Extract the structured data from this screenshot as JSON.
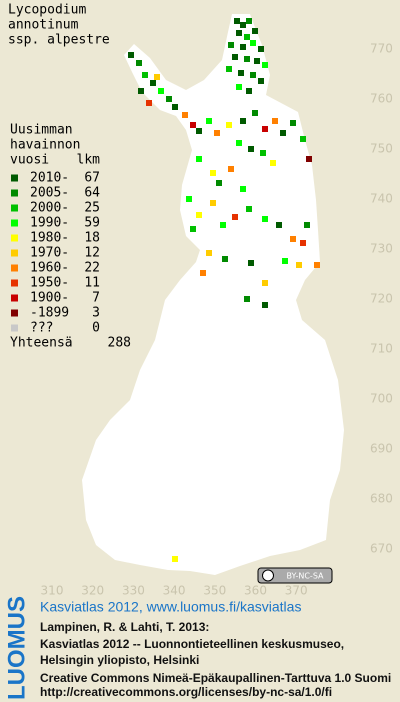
{
  "header": {
    "title_lines": [
      "Lycopodium",
      "annotinum",
      "ssp. alpestre"
    ]
  },
  "legend": {
    "heading_lines": [
      "Uusimman",
      "havainnon",
      "vuosi"
    ],
    "count_heading": "lkm",
    "rows": [
      {
        "label": "2010-",
        "count": 67,
        "color": "#005a00"
      },
      {
        "label": "2005-",
        "count": 64,
        "color": "#008a00"
      },
      {
        "label": "2000-",
        "count": 25,
        "color": "#00c000"
      },
      {
        "label": "1990-",
        "count": 59,
        "color": "#00ff00"
      },
      {
        "label": "1980-",
        "count": 18,
        "color": "#ffff00"
      },
      {
        "label": "1970-",
        "count": 12,
        "color": "#ffcc00"
      },
      {
        "label": "1960-",
        "count": 22,
        "color": "#ff8000"
      },
      {
        "label": "1950-",
        "count": 11,
        "color": "#e63200"
      },
      {
        "label": "1900-",
        "count": 7,
        "color": "#c80000"
      },
      {
        "label": "-1899",
        "count": 3,
        "color": "#800000"
      },
      {
        "label": "???",
        "count": 0,
        "color": "#c8c8c8"
      }
    ],
    "total_label": "Yhteensä",
    "total": 288
  },
  "map": {
    "xticks": [
      310,
      320,
      330,
      340,
      350,
      360,
      370
    ],
    "yticks": [
      770,
      760,
      750,
      740,
      730,
      720,
      710,
      700,
      690,
      680,
      670
    ],
    "license_badge": "BY-NC-SA"
  },
  "footer": {
    "logo": "LUOMUS",
    "link": "Kasviatlas 2012, www.luomus.fi/kasviatlas",
    "citation_lines": [
      "Lampinen, R. & Lahti, T. 2013:",
      "Kasviatlas 2012 -- Luonnontieteellinen keskusmuseo,",
      "Helsingin yliopisto, Helsinki"
    ],
    "license_lines": [
      "Creative Commons Nimeä-Epäkaupallinen-Tarttuva 1.0 Suomi",
      "http://creativecommons.org/licenses/by-nc-sa/1.0/fi"
    ]
  }
}
